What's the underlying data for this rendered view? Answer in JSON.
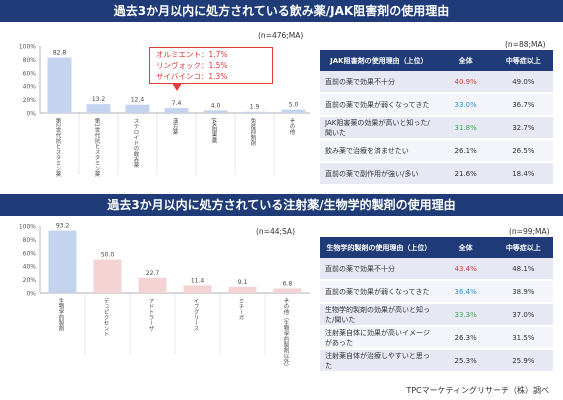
{
  "section1": {
    "title": "過去3か月以内に処方されている飲み薬/JAK阻害剤の使用理由",
    "n_chart": "(n=476;MA)",
    "n_table": "(n=88;MA)",
    "annotation": [
      "オルミエント：1.7%",
      "リンヴォック：1.5%",
      "サイバインコ：1.3%"
    ],
    "table": {
      "headers": [
        "JAK阻害剤の使用理由（上位）",
        "全体",
        "中等症以上"
      ],
      "rows": [
        {
          "label": "直前の薬で効果不十分",
          "total": "40.9%",
          "moderate": "49.0%",
          "hl": "red"
        },
        {
          "label": "直前の薬で効果が弱くなってきた",
          "total": "33.0%",
          "moderate": "36.7%",
          "hl": "blue"
        },
        {
          "label": "JAK阻害薬の効果が高いと知った/聞いた",
          "total": "31.8%",
          "moderate": "32.7%",
          "hl": "green"
        },
        {
          "label": "飲み薬で治療を済ませたい",
          "total": "26.1%",
          "moderate": "26.5%",
          "hl": ""
        },
        {
          "label": "直前の薬で副作用が強い/多い",
          "total": "21.6%",
          "moderate": "18.4%",
          "hl": ""
        }
      ]
    }
  },
  "section2": {
    "title": "過去3か月以内に処方されている注射薬/生物学的製剤の使用理由",
    "n_chart": "(n=44;SA)",
    "n_table": "(n=99;MA)",
    "table": {
      "headers": [
        "生物学的製剤の使用理由（上位）",
        "全体",
        "中等症以上"
      ],
      "rows": [
        {
          "label": "直前の薬で効果不十分",
          "total": "43.4%",
          "moderate": "48.1%",
          "hl": "red"
        },
        {
          "label": "直前の薬で効果が弱くなってきた",
          "total": "36.4%",
          "moderate": "38.9%",
          "hl": "blue"
        },
        {
          "label": "生物学的製剤の効果が高いと知った/聞いた",
          "total": "33.3%",
          "moderate": "37.0%",
          "hl": "green"
        },
        {
          "label": "注射薬自体に効果が高いイメージがあった",
          "total": "26.3%",
          "moderate": "31.5%",
          "hl": ""
        },
        {
          "label": "注射薬自体が治療しやすいと思った",
          "total": "25.3%",
          "moderate": "25.9%",
          "hl": ""
        }
      ]
    }
  },
  "source": "TPCマーケティングリサーチ（株）調べ",
  "colors": {
    "banner": "#1f3c78",
    "bar_blue": "#c5d4ee",
    "bar_pink": "#f3d3d3",
    "highlight_red": "#e23a3a",
    "highlight_blue": "#2f8fd6",
    "highlight_green": "#3aa84f"
  },
  "chart_data": [
    {
      "type": "bar",
      "categories": [
        "第2世代抗ヒスタミン薬",
        "第1世代抗ヒスタミン薬",
        "ステロイドの飲み薬",
        "漢方薬",
        "JAK阻害薬",
        "免疫抑制剤",
        "その他"
      ],
      "values": [
        82.8,
        13.2,
        12.4,
        7.4,
        4.0,
        1.9,
        5.0
      ],
      "ylim": [
        0,
        100
      ],
      "yticks": [
        "0%",
        "20%",
        "40%",
        "60%",
        "80%",
        "100%"
      ],
      "grid": false
    },
    {
      "type": "bar",
      "categories": [
        "生物学的製剤",
        "デュピクセント",
        "アドトラーザ",
        "イブグリース",
        "ミチーガ",
        "その他（生物学的製剤以外）"
      ],
      "values": [
        93.2,
        50.0,
        22.7,
        11.4,
        9.1,
        6.8
      ],
      "ylim": [
        0,
        100
      ],
      "yticks": [
        "0%",
        "20%",
        "40%",
        "60%",
        "80%",
        "100%"
      ],
      "grid": false
    }
  ]
}
